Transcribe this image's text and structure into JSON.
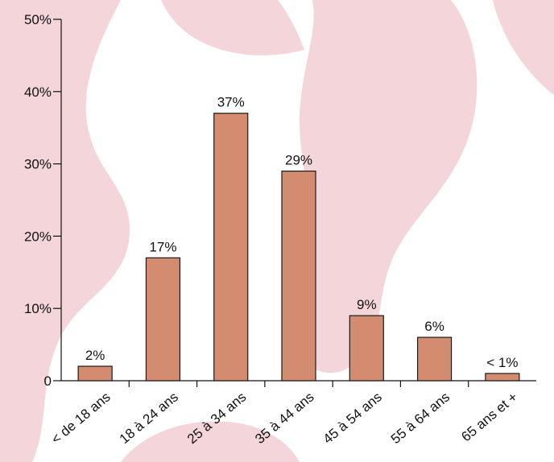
{
  "chart_data": {
    "type": "bar",
    "categories": [
      "< de 18 ans",
      "18 à 24 ans",
      "25 à 34 ans",
      "35 à 44 ans",
      "45 à 54 ans",
      "55 à 64 ans",
      "65 ans et +"
    ],
    "values": [
      2,
      17,
      37,
      29,
      9,
      6,
      1
    ],
    "data_labels": [
      "2%",
      "17%",
      "37%",
      "29%",
      "9%",
      "6%",
      "< 1%"
    ],
    "yticks": [
      0,
      10,
      20,
      30,
      40,
      50
    ],
    "ytick_labels": [
      "0",
      "10%",
      "20%",
      "30%",
      "40%",
      "50%"
    ],
    "ylim": [
      0,
      50
    ],
    "title": "",
    "xlabel": "",
    "ylabel": "",
    "grid": false,
    "legend": "none",
    "colors": {
      "bar_fill": "#d38c70",
      "bar_stroke": "#1a1a1a",
      "axis": "#111111",
      "background_shape": "#f3d5da"
    }
  }
}
